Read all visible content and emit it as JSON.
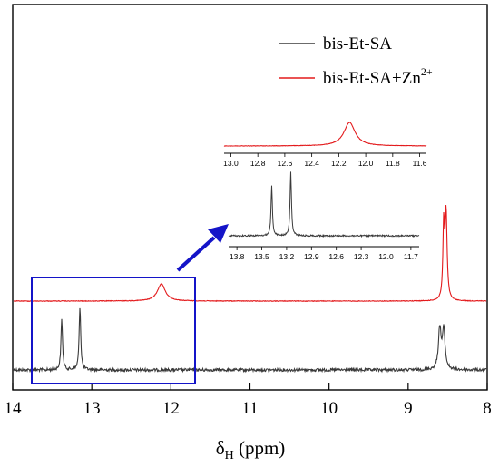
{
  "chart_data": {
    "type": "line",
    "xlabel_main": "δ",
    "xlabel_sub": "H",
    "xlabel_unit": " (ppm)",
    "x_ticks": [
      "14",
      "13",
      "12",
      "11",
      "10",
      "9",
      "8"
    ],
    "xlim": [
      14,
      8
    ],
    "x_reversed": true,
    "y_axis_labeled": false,
    "legend": {
      "placement": "top-right",
      "entries": [
        {
          "name": "bis-Et-SA",
          "color": "#3a3a3a"
        },
        {
          "name": "bis-Et-SA+Zn",
          "superscript": "2+",
          "color": "#e31a1c"
        }
      ]
    },
    "series": [
      {
        "name": "bis-Et-SA",
        "color": "#3a3a3a",
        "peaks": [
          {
            "x": 13.38,
            "height": 0.56
          },
          {
            "x": 13.15,
            "height": 0.7
          },
          {
            "x": 8.6,
            "height": 0.45
          },
          {
            "x": 8.55,
            "height": 0.43
          }
        ]
      },
      {
        "name": "bis-Et-SA+Zn2+",
        "color": "#e31a1c",
        "peaks": [
          {
            "x": 12.12,
            "height": 0.19
          },
          {
            "x": 8.55,
            "height": 0.8
          },
          {
            "x": 8.52,
            "height": 0.95
          }
        ]
      }
    ],
    "annotation": {
      "box": {
        "x_from": 13.85,
        "x_to": 11.7,
        "color": "#1414c8"
      },
      "arrow_color": "#1414c8"
    },
    "insets": [
      {
        "series": "bis-Et-SA+Zn2+",
        "color": "#e31a1c",
        "xlim": [
          13.05,
          11.55
        ],
        "ticks": [
          "13.0",
          "12.8",
          "12.6",
          "12.4",
          "12.2",
          "12.0",
          "11.8",
          "11.6"
        ]
      },
      {
        "series": "bis-Et-SA",
        "color": "#3a3a3a",
        "xlim": [
          13.9,
          11.6
        ],
        "ticks": [
          "13.8",
          "13.5",
          "13.2",
          "12.9",
          "12.6",
          "12.3",
          "12.0",
          "11.7"
        ]
      }
    ]
  }
}
